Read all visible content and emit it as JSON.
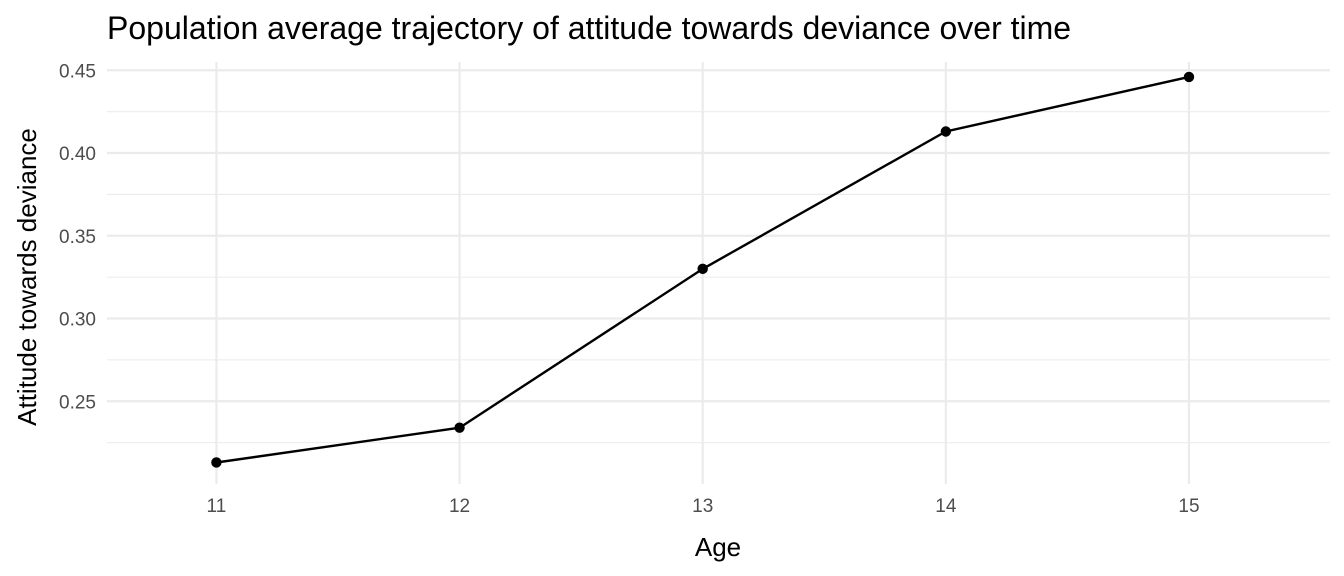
{
  "chart_data": {
    "type": "line",
    "title": "Population average trajectory of attitude towards deviance over time",
    "xlabel": "Age",
    "ylabel": "Attitude towards deviance",
    "x": [
      11,
      12,
      13,
      14,
      15
    ],
    "x_tick_labels": [
      "11",
      "12",
      "13",
      "14",
      "15"
    ],
    "xlim": [
      10.55,
      15.58
    ],
    "y_ticks": [
      0.25,
      0.3,
      0.35,
      0.4,
      0.45
    ],
    "y_tick_labels": [
      "0.25",
      "0.30",
      "0.35",
      "0.40",
      "0.45"
    ],
    "y_minor": [
      0.225,
      0.275,
      0.325,
      0.375,
      0.425
    ],
    "ylim": [
      0.2,
      0.455
    ],
    "grid": true,
    "series": [
      {
        "values": [
          0.213,
          0.234,
          0.33,
          0.413,
          0.446
        ],
        "color": "#000000"
      }
    ]
  }
}
